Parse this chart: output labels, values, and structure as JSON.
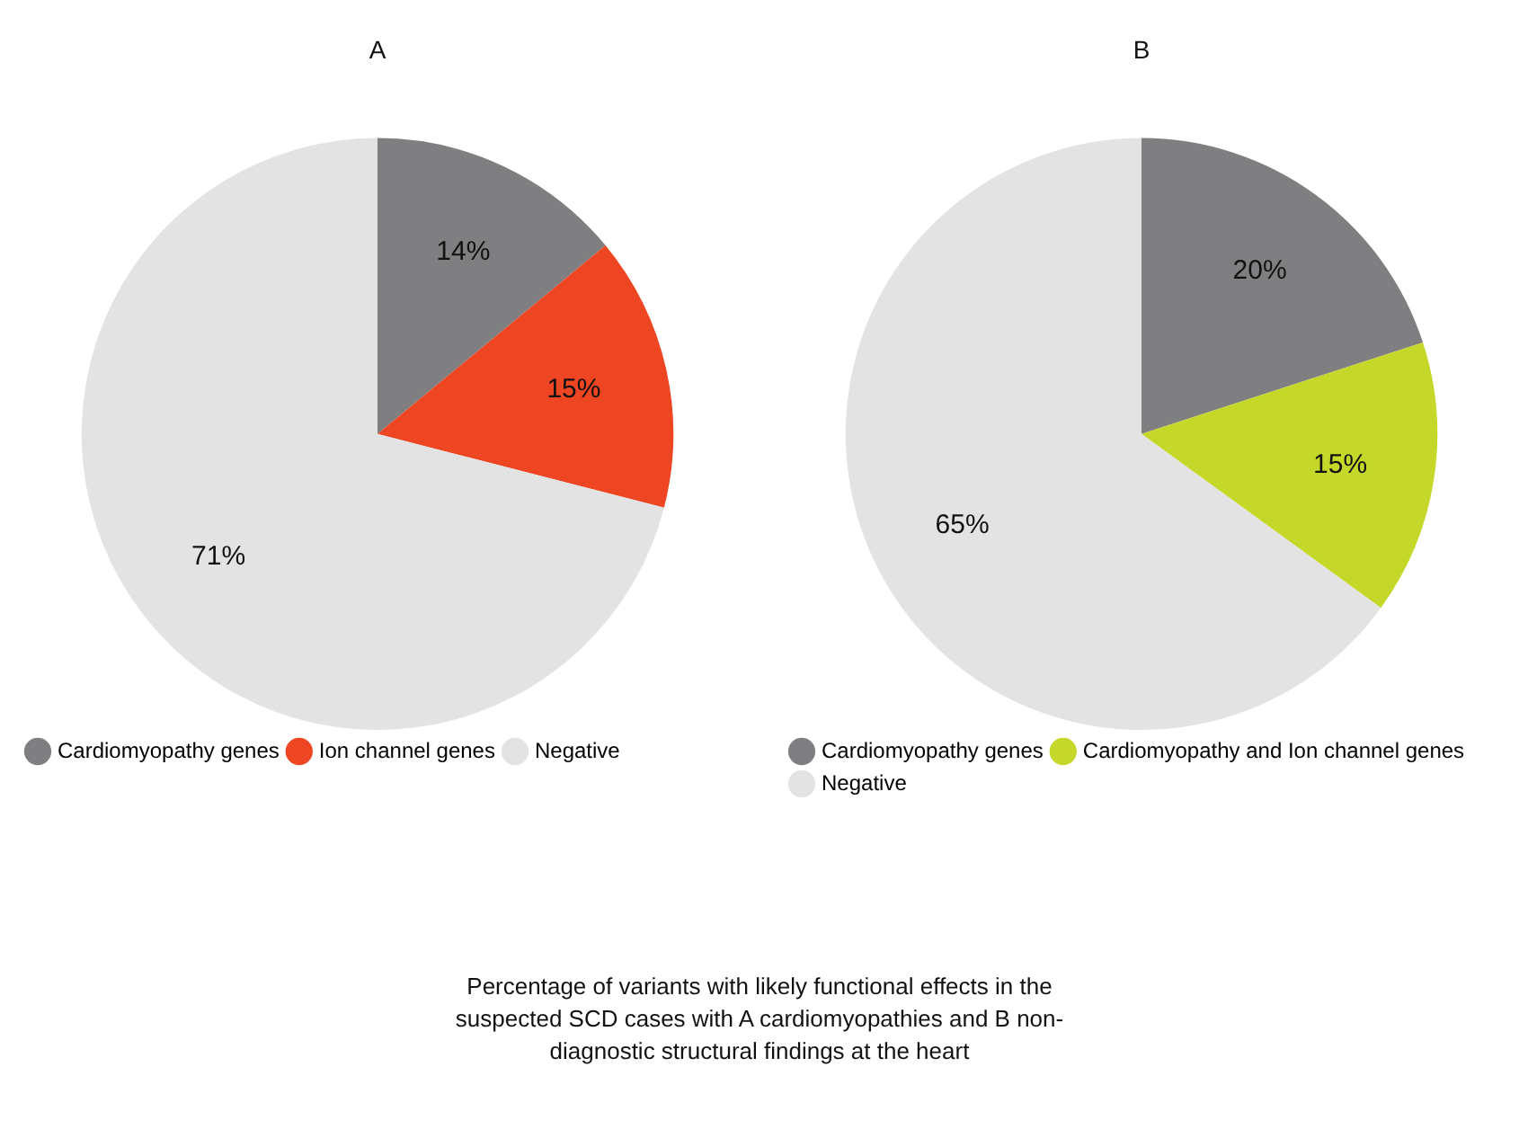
{
  "chart_data": [
    {
      "type": "pie",
      "title": "A",
      "categories": [
        "Cardiomyopathy genes",
        "Ion channel genes",
        "Negative"
      ],
      "values": [
        14,
        15,
        71
      ],
      "value_labels": [
        "14%",
        "15%",
        "71%"
      ],
      "colors": [
        "#7f7f82",
        "#ee4623",
        "#e3e3e3"
      ],
      "legend": "bottom left"
    },
    {
      "type": "pie",
      "title": "B",
      "categories": [
        "Cardiomyopathy genes",
        "Cardiomyopathy and Ion channel genes",
        "Negative"
      ],
      "values": [
        20,
        15,
        65
      ],
      "value_labels": [
        "20%",
        "15%",
        "65%"
      ],
      "colors": [
        "#7f7f82",
        "#c5d82a",
        "#e3e3e3"
      ],
      "legend": "bottom left",
      "annotations": [
        "Percentage of variants with likely functional effects in the suspected SCD cases with A cardiomyopathies and B non-diagnostic structural findings at the heart"
      ]
    }
  ]
}
